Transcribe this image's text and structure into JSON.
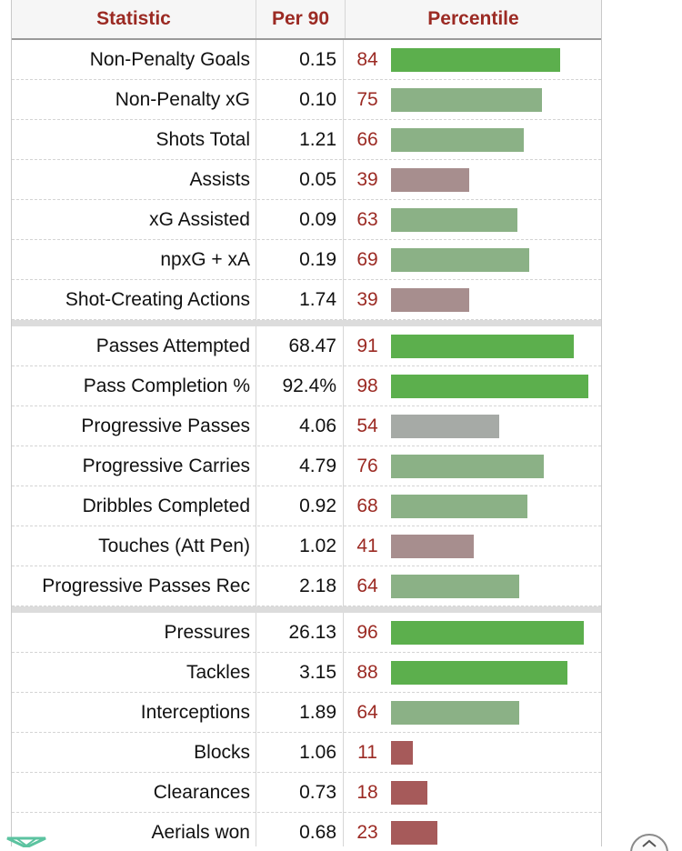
{
  "header": {
    "statistic_label": "Statistic",
    "per90_label": "Per 90",
    "percentile_label": "Percentile"
  },
  "colors": {
    "header_text": "#9b2a23",
    "percentile_text": "#9b2a23",
    "bar_high": "#5caf4d",
    "bar_mid_high": "#8bb186",
    "bar_mid": "#a6aaa6",
    "bar_low": "#a78e8e",
    "bar_very_low": "#a65a5a"
  },
  "rows": [
    {
      "stat": "Non-Penalty Goals",
      "per90": "0.15",
      "percentile": "84"
    },
    {
      "stat": "Non-Penalty xG",
      "per90": "0.10",
      "percentile": "75"
    },
    {
      "stat": "Shots Total",
      "per90": "1.21",
      "percentile": "66"
    },
    {
      "stat": "Assists",
      "per90": "0.05",
      "percentile": "39"
    },
    {
      "stat": "xG Assisted",
      "per90": "0.09",
      "percentile": "63"
    },
    {
      "stat": "npxG + xA",
      "per90": "0.19",
      "percentile": "69"
    },
    {
      "stat": "Shot-Creating Actions",
      "per90": "1.74",
      "percentile": "39"
    },
    {
      "stat": "Passes Attempted",
      "per90": "68.47",
      "percentile": "91"
    },
    {
      "stat": "Pass Completion %",
      "per90": "92.4%",
      "percentile": "98"
    },
    {
      "stat": "Progressive Passes",
      "per90": "4.06",
      "percentile": "54"
    },
    {
      "stat": "Progressive Carries",
      "per90": "4.79",
      "percentile": "76"
    },
    {
      "stat": "Dribbles Completed",
      "per90": "0.92",
      "percentile": "68"
    },
    {
      "stat": "Touches (Att Pen)",
      "per90": "1.02",
      "percentile": "41"
    },
    {
      "stat": "Progressive Passes Rec",
      "per90": "2.18",
      "percentile": "64"
    },
    {
      "stat": "Pressures",
      "per90": "26.13",
      "percentile": "96"
    },
    {
      "stat": "Tackles",
      "per90": "3.15",
      "percentile": "88"
    },
    {
      "stat": "Interceptions",
      "per90": "1.89",
      "percentile": "64"
    },
    {
      "stat": "Blocks",
      "per90": "1.06",
      "percentile": "11"
    },
    {
      "stat": "Clearances",
      "per90": "0.73",
      "percentile": "18"
    },
    {
      "stat": "Aerials won",
      "per90": "0.68",
      "percentile": "23"
    }
  ],
  "icons": {
    "bottom_left": "green-logo-icon",
    "bottom_right": "scroll-top-button-icon"
  }
}
